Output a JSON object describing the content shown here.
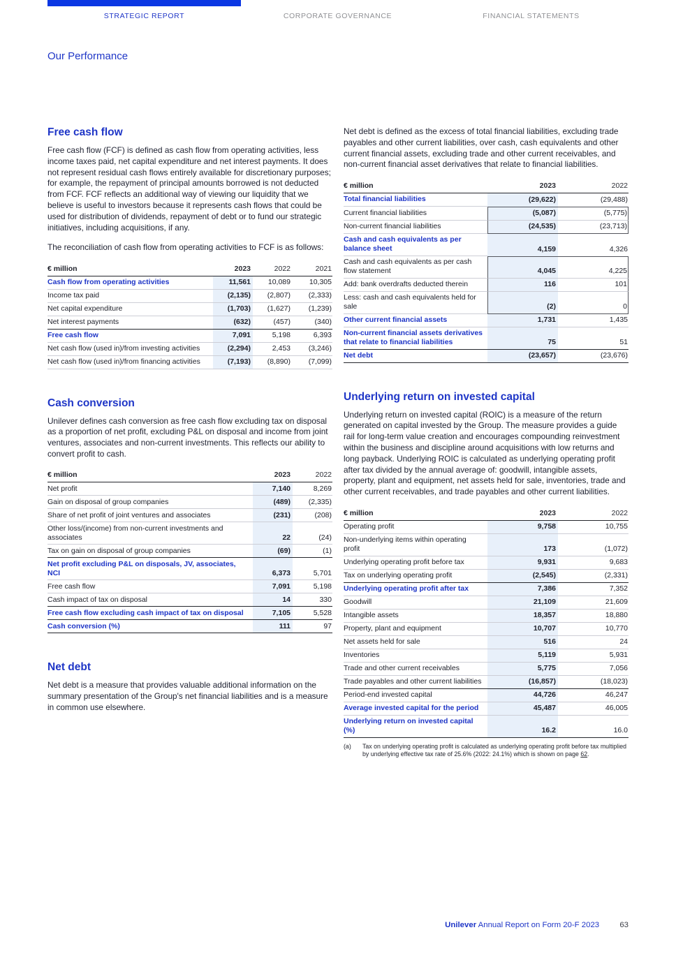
{
  "meta": {
    "colors": {
      "brand_blue": "#1F36C7",
      "accent_bar": "#0B37E3",
      "column_shade": "#E8F0FA",
      "body_text": "#1d2030",
      "nav_inactive": "#8f9094",
      "rule_dark": "#24262c",
      "rule_light": "#cdced6",
      "box_line": "#53555c"
    }
  },
  "nav": {
    "tabs": [
      {
        "label": "STRATEGIC REPORT",
        "active": true
      },
      {
        "label": "CORPORATE GOVERNANCE",
        "active": false
      },
      {
        "label": "FINANCIAL STATEMENTS",
        "active": false
      }
    ]
  },
  "page_title": "Our Performance",
  "left": {
    "fcf": {
      "heading": "Free cash flow",
      "para1": "Free cash flow (FCF) is defined as cash flow from operating activities, less income taxes paid, net capital expenditure and net interest payments. It does not represent residual cash flows entirely available for discretionary purposes; for example, the repayment of principal amounts borrowed is not deducted from FCF. FCF reflects an additional way of viewing our liquidity that we believe is useful to investors because it represents cash flows that could be used for distribution of dividends, repayment of debt or to fund our strategic initiatives, including acquisitions, if any.",
      "para2": "The reconciliation of cash flow from operating activities to FCF is as follows:"
    },
    "fcf_table": {
      "unit": "€ million",
      "years": [
        "2023",
        "2022",
        "2021"
      ],
      "rows": [
        {
          "label": "Cash flow from operating activities",
          "values": [
            "11,561",
            "10,089",
            "10,305"
          ],
          "blue": true
        },
        {
          "label": "Income tax paid",
          "values": [
            "(2,135)",
            "(2,807)",
            "(2,333)"
          ]
        },
        {
          "label": "Net capital expenditure",
          "values": [
            "(1,703)",
            "(1,627)",
            "(1,239)"
          ]
        },
        {
          "label": "Net interest payments",
          "values": [
            "(632)",
            "(457)",
            "(340)"
          ]
        },
        {
          "label": "Free cash flow",
          "values": [
            "7,091",
            "5,198",
            "6,393"
          ],
          "blue": true,
          "rule": true
        },
        {
          "label": "Net cash flow (used in)/from investing activities",
          "values": [
            "(2,294)",
            "2,453",
            "(3,246)"
          ]
        },
        {
          "label": "Net cash flow (used in)/from financing activities",
          "values": [
            "(7,193)",
            "(8,890)",
            "(7,099)"
          ]
        }
      ]
    },
    "cash_conversion": {
      "heading": "Cash conversion",
      "para": "Unilever defines cash conversion as free cash flow excluding tax on disposal as a proportion of net profit, excluding P&L on disposal and income from joint ventures, associates and non-current investments. This reflects our ability to convert profit to cash."
    },
    "cc_table": {
      "unit": "€ million",
      "years": [
        "2023",
        "2022"
      ],
      "rows": [
        {
          "label": "Net profit",
          "values": [
            "7,140",
            "8,269"
          ]
        },
        {
          "label": "Gain on disposal of group companies",
          "values": [
            "(489)",
            "(2,335)"
          ]
        },
        {
          "label": "Share of net profit of joint ventures and associates",
          "values": [
            "(231)",
            "(208)"
          ]
        },
        {
          "label": "Other loss/(income) from non-current investments and associates",
          "values": [
            "22",
            "(24)"
          ]
        },
        {
          "label": "Tax on gain on disposal of group companies",
          "values": [
            "(69)",
            "(1)"
          ]
        },
        {
          "label": "Net profit excluding P&L on disposals, JV, associates, NCI",
          "values": [
            "6,373",
            "5,701"
          ],
          "blue": true,
          "rule": true
        },
        {
          "label": "Free cash flow",
          "values": [
            "7,091",
            "5,198"
          ]
        },
        {
          "label": "Cash impact of tax on disposal",
          "values": [
            "14",
            "330"
          ]
        },
        {
          "label": "Free cash flow excluding cash impact of tax on disposal",
          "values": [
            "7,105",
            "5,528"
          ],
          "blue": true,
          "rule": true
        },
        {
          "label": "Cash conversion (%)",
          "values": [
            "111",
            "97"
          ],
          "blue": true,
          "rule": true,
          "dark_bottom": true
        }
      ]
    },
    "net_debt": {
      "heading": "Net debt",
      "para": "Net debt is a measure that provides valuable additional information on the summary presentation of the Group's net financial liabilities and is a measure in common use elsewhere."
    }
  },
  "right": {
    "net_debt_para": "Net debt is defined as the excess of total financial liabilities, excluding trade payables and other current liabilities, over cash, cash equivalents and other current financial assets, excluding trade and other current receivables, and non-current financial asset derivatives that relate to financial liabilities.",
    "nd_table": {
      "unit": "€ million",
      "years": [
        "2023",
        "2022"
      ],
      "rows": [
        {
          "label": "Total financial liabilities",
          "values": [
            "(29,622)",
            "(29,488)"
          ],
          "blue": true
        },
        {
          "label": "Current financial liabilities",
          "values": [
            "(5,087)",
            "(5,775)"
          ],
          "box": true
        },
        {
          "label": "Non-current financial liabilities",
          "values": [
            "(24,535)",
            "(23,713)"
          ],
          "box": true
        },
        {
          "label": "Cash and cash equivalents as per balance sheet",
          "values": [
            "4,159",
            "4,326"
          ],
          "blue": true
        },
        {
          "label": "Cash and cash equivalents as per cash flow statement",
          "values": [
            "4,045",
            "4,225"
          ],
          "box": true
        },
        {
          "label": "Add: bank overdrafts deducted therein",
          "values": [
            "116",
            "101"
          ],
          "box": true
        },
        {
          "label": "Less: cash and cash equivalents held for sale",
          "values": [
            "(2)",
            "0"
          ],
          "box": true
        },
        {
          "label": "Other current financial assets",
          "values": [
            "1,731",
            "1,435"
          ],
          "blue": true
        },
        {
          "label": "Non-current financial assets derivatives that relate to financial liabilities",
          "values": [
            "75",
            "51"
          ],
          "blue": true
        },
        {
          "label": "Net debt",
          "values": [
            "(23,657)",
            "(23,676)"
          ],
          "blue": true,
          "rule": true,
          "dark_bottom": true
        }
      ]
    },
    "roic": {
      "heading": "Underlying return on invested capital",
      "para": "Underlying return on invested capital (ROIC) is a measure of the return generated on capital invested by the Group. The measure provides a guide rail for long-term value creation and encourages compounding reinvestment within the business and discipline around acquisitions with low returns and long payback. Underlying ROIC is calculated as underlying operating profit after tax divided by the annual average of: goodwill, intangible assets, property, plant and equipment, net assets held for sale, inventories, trade and other current receivables, and trade payables and other current liabilities."
    },
    "roic_table": {
      "unit": "€ million",
      "years": [
        "2023",
        "2022"
      ],
      "rows": [
        {
          "label": "Operating profit",
          "values": [
            "9,758",
            "10,755"
          ]
        },
        {
          "label": "Non-underlying items within operating profit",
          "values": [
            "173",
            "(1,072)"
          ]
        },
        {
          "label": "Underlying operating profit before tax",
          "values": [
            "9,931",
            "9,683"
          ]
        },
        {
          "label": "Tax on underlying operating profit",
          "values": [
            "(2,545)",
            "(2,331)"
          ]
        },
        {
          "label": "Underlying operating profit after tax",
          "values": [
            "7,386",
            "7,352"
          ],
          "blue": true,
          "rule": true
        },
        {
          "label": "Goodwill",
          "values": [
            "21,109",
            "21,609"
          ]
        },
        {
          "label": "Intangible assets",
          "values": [
            "18,357",
            "18,880"
          ]
        },
        {
          "label": "Property, plant and equipment",
          "values": [
            "10,707",
            "10,770"
          ]
        },
        {
          "label": "Net assets held for sale",
          "values": [
            "516",
            "24"
          ]
        },
        {
          "label": "Inventories",
          "values": [
            "5,119",
            "5,931"
          ]
        },
        {
          "label": "Trade and other current receivables",
          "values": [
            "5,775",
            "7,056"
          ]
        },
        {
          "label": "Trade payables and other current liabilities",
          "values": [
            "(16,857)",
            "(18,023)"
          ]
        },
        {
          "label": "Period-end invested capital",
          "values": [
            "44,726",
            "46,247"
          ],
          "rule": true
        },
        {
          "label": "Average invested capital for the period",
          "values": [
            "45,487",
            "46,005"
          ],
          "blue": true
        },
        {
          "label": "Underlying return on invested capital (%)",
          "values": [
            "16.2",
            "16.0"
          ],
          "blue": true,
          "dark_bottom": true
        }
      ]
    },
    "footnote": {
      "marker": "(a)",
      "text": "Tax on underlying operating profit is calculated as underlying operating profit before tax multiplied by underlying effective tax rate of 25.6% (2022: 24.1%) which is shown on page ",
      "link": "62",
      "suffix": "."
    }
  },
  "footer": {
    "brand": "Unilever",
    "title": " Annual Report on Form 20-F 2023",
    "page": "63"
  }
}
